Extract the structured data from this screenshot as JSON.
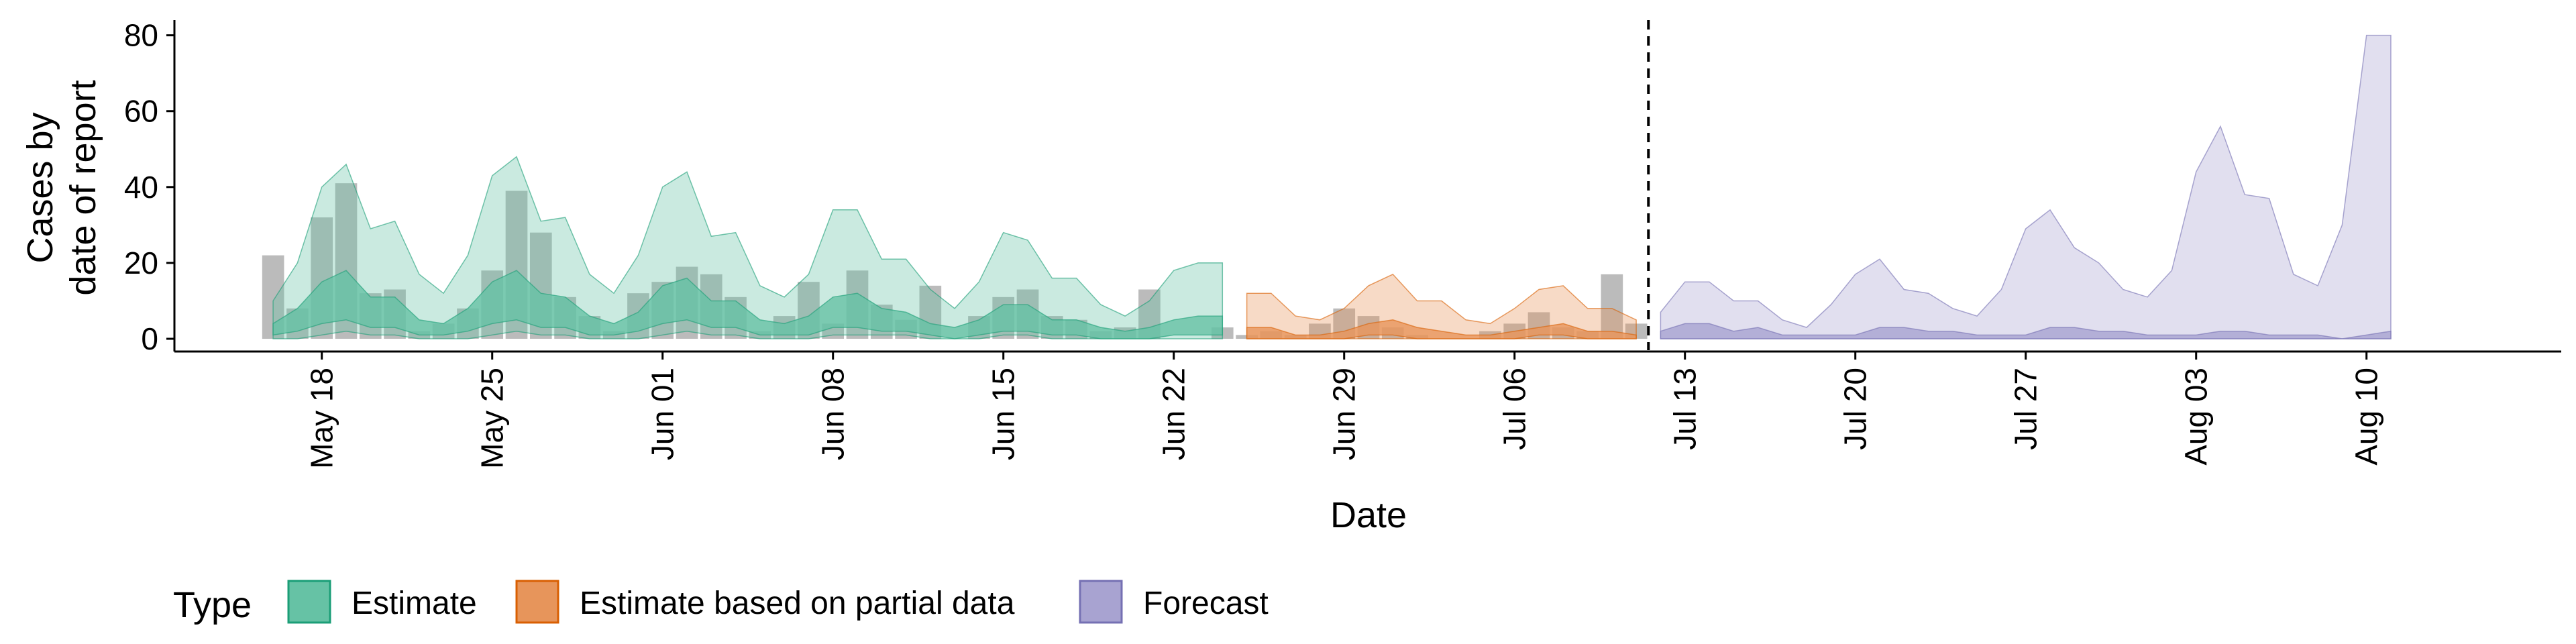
{
  "chart_data": {
    "type": "area",
    "xlabel": "Date",
    "ylabel": [
      "Cases by",
      "date of report"
    ],
    "ylim": [
      -3,
      84
    ],
    "y_ticks": [
      0,
      20,
      40,
      60,
      80
    ],
    "x_start": "2020-05-12",
    "x_end": "2020-08-18",
    "x_ticks": [
      {
        "date": "2020-05-18",
        "label": "May 18"
      },
      {
        "date": "2020-05-25",
        "label": "May 25"
      },
      {
        "date": "2020-06-01",
        "label": "Jun 01"
      },
      {
        "date": "2020-06-08",
        "label": "Jun 08"
      },
      {
        "date": "2020-06-15",
        "label": "Jun 15"
      },
      {
        "date": "2020-06-22",
        "label": "Jun 22"
      },
      {
        "date": "2020-06-29",
        "label": "Jun 29"
      },
      {
        "date": "2020-07-06",
        "label": "Jul 06"
      },
      {
        "date": "2020-07-13",
        "label": "Jul 13"
      },
      {
        "date": "2020-07-20",
        "label": "Jul 20"
      },
      {
        "date": "2020-07-27",
        "label": "Jul 27"
      },
      {
        "date": "2020-08-03",
        "label": "Aug 03"
      },
      {
        "date": "2020-08-10",
        "label": "Aug 10"
      }
    ],
    "forecast_start_line": "2020-07-12",
    "legend": {
      "title": "Type",
      "position": "bottom",
      "items": [
        {
          "label": "Estimate",
          "fill": "#66C2A5",
          "stroke": "#1B9E77"
        },
        {
          "label": "Estimate based on partial data",
          "fill": "#E7955B",
          "stroke": "#D95F02"
        },
        {
          "label": "Forecast",
          "fill": "#A8A3D1",
          "stroke": "#7570B3"
        }
      ]
    },
    "observed_bars": {
      "color": "#9E9E9E",
      "dates": [
        "2020-05-16",
        "2020-05-17",
        "2020-05-18",
        "2020-05-19",
        "2020-05-20",
        "2020-05-21",
        "2020-05-22",
        "2020-05-23",
        "2020-05-24",
        "2020-05-25",
        "2020-05-26",
        "2020-05-27",
        "2020-05-28",
        "2020-05-29",
        "2020-05-30",
        "2020-05-31",
        "2020-06-01",
        "2020-06-02",
        "2020-06-03",
        "2020-06-04",
        "2020-06-05",
        "2020-06-06",
        "2020-06-07",
        "2020-06-08",
        "2020-06-09",
        "2020-06-10",
        "2020-06-11",
        "2020-06-12",
        "2020-06-13",
        "2020-06-14",
        "2020-06-15",
        "2020-06-16",
        "2020-06-17",
        "2020-06-18",
        "2020-06-19",
        "2020-06-20",
        "2020-06-21",
        "2020-06-22",
        "2020-06-23",
        "2020-06-24",
        "2020-06-25",
        "2020-06-26",
        "2020-06-27",
        "2020-06-28",
        "2020-06-29",
        "2020-06-30",
        "2020-07-01",
        "2020-07-02",
        "2020-07-03",
        "2020-07-04",
        "2020-07-05",
        "2020-07-06",
        "2020-07-07",
        "2020-07-08",
        "2020-07-09",
        "2020-07-10",
        "2020-07-11"
      ],
      "values": [
        22,
        8,
        32,
        41,
        12,
        13,
        2,
        4,
        8,
        18,
        39,
        28,
        11,
        6,
        2,
        12,
        15,
        19,
        17,
        11,
        2,
        6,
        15,
        4,
        18,
        9,
        5,
        14,
        0,
        6,
        11,
        13,
        6,
        5,
        2,
        3,
        13,
        0,
        0,
        3,
        1,
        2,
        1,
        4,
        8,
        6,
        3,
        1,
        0,
        0,
        2,
        4,
        7,
        3,
        2,
        17,
        4
      ]
    },
    "series": [
      {
        "name": "Estimate",
        "dates": [
          "2020-05-16",
          "2020-05-17",
          "2020-05-18",
          "2020-05-19",
          "2020-05-20",
          "2020-05-21",
          "2020-05-22",
          "2020-05-23",
          "2020-05-24",
          "2020-05-25",
          "2020-05-26",
          "2020-05-27",
          "2020-05-28",
          "2020-05-29",
          "2020-05-30",
          "2020-05-31",
          "2020-06-01",
          "2020-06-02",
          "2020-06-03",
          "2020-06-04",
          "2020-06-05",
          "2020-06-06",
          "2020-06-07",
          "2020-06-08",
          "2020-06-09",
          "2020-06-10",
          "2020-06-11",
          "2020-06-12",
          "2020-06-13",
          "2020-06-14",
          "2020-06-15",
          "2020-06-16",
          "2020-06-17",
          "2020-06-18",
          "2020-06-19",
          "2020-06-20",
          "2020-06-21",
          "2020-06-22",
          "2020-06-23",
          "2020-06-24"
        ],
        "outer_upper": [
          10,
          20,
          40,
          46,
          29,
          31,
          17,
          12,
          22,
          43,
          48,
          31,
          32,
          17,
          12,
          22,
          40,
          44,
          27,
          28,
          14,
          11,
          17,
          34,
          34,
          21,
          21,
          13,
          8,
          15,
          28,
          26,
          16,
          16,
          9,
          6,
          10,
          18,
          20,
          20
        ],
        "outer_lower": [
          0,
          0,
          1,
          2,
          1,
          1,
          0,
          0,
          0,
          1,
          2,
          1,
          1,
          0,
          0,
          0,
          1,
          2,
          1,
          1,
          0,
          0,
          0,
          1,
          1,
          1,
          1,
          0,
          0,
          0,
          1,
          1,
          0,
          0,
          0,
          0,
          0,
          0,
          0,
          0
        ],
        "inner_upper": [
          4,
          8,
          15,
          18,
          11,
          11,
          5,
          4,
          8,
          15,
          18,
          12,
          11,
          6,
          4,
          7,
          14,
          16,
          10,
          10,
          5,
          4,
          6,
          11,
          12,
          8,
          7,
          4,
          3,
          5,
          9,
          9,
          5,
          5,
          3,
          2,
          3,
          5,
          6,
          6
        ],
        "inner_lower": [
          1,
          2,
          4,
          5,
          3,
          3,
          1,
          1,
          2,
          4,
          5,
          3,
          3,
          1,
          1,
          2,
          4,
          5,
          3,
          3,
          1,
          1,
          1,
          3,
          3,
          2,
          2,
          1,
          0,
          1,
          2,
          2,
          1,
          1,
          0,
          0,
          0,
          1,
          1,
          1
        ]
      },
      {
        "name": "Estimate based on partial data",
        "dates": [
          "2020-06-25",
          "2020-06-26",
          "2020-06-27",
          "2020-06-28",
          "2020-06-29",
          "2020-06-30",
          "2020-07-01",
          "2020-07-02",
          "2020-07-03",
          "2020-07-04",
          "2020-07-05",
          "2020-07-06",
          "2020-07-07",
          "2020-07-08",
          "2020-07-09",
          "2020-07-10",
          "2020-07-11"
        ],
        "outer_upper": [
          12,
          12,
          6,
          5,
          8,
          14,
          17,
          10,
          10,
          5,
          4,
          8,
          13,
          14,
          8,
          8,
          5
        ],
        "outer_lower": [
          0,
          0,
          0,
          0,
          0,
          0,
          0,
          0,
          0,
          0,
          0,
          0,
          0,
          0,
          0,
          0,
          0
        ],
        "inner_upper": [
          3,
          3,
          1,
          1,
          2,
          4,
          5,
          3,
          2,
          1,
          1,
          2,
          3,
          4,
          2,
          2,
          1
        ],
        "inner_lower": [
          0,
          0,
          0,
          0,
          0,
          1,
          1,
          0,
          0,
          0,
          0,
          0,
          1,
          1,
          0,
          0,
          0
        ]
      },
      {
        "name": "Forecast",
        "dates": [
          "2020-07-12",
          "2020-07-13",
          "2020-07-14",
          "2020-07-15",
          "2020-07-16",
          "2020-07-17",
          "2020-07-18",
          "2020-07-19",
          "2020-07-20",
          "2020-07-21",
          "2020-07-22",
          "2020-07-23",
          "2020-07-24",
          "2020-07-25",
          "2020-07-26",
          "2020-07-27",
          "2020-07-28",
          "2020-07-29",
          "2020-07-30",
          "2020-07-31",
          "2020-08-01",
          "2020-08-02",
          "2020-08-03",
          "2020-08-04",
          "2020-08-05",
          "2020-08-06",
          "2020-08-07",
          "2020-08-08",
          "2020-08-09",
          "2020-08-10",
          "2020-08-11"
        ],
        "outer_upper": [
          7,
          15,
          15,
          10,
          10,
          5,
          3,
          9,
          17,
          21,
          13,
          12,
          8,
          6,
          13,
          29,
          34,
          24,
          20,
          13,
          11,
          18,
          44,
          56,
          38,
          37,
          17,
          14,
          30,
          80,
          80
        ],
        "outer_lower": [
          0,
          0,
          0,
          0,
          0,
          0,
          0,
          0,
          0,
          0,
          0,
          0,
          0,
          0,
          0,
          0,
          0,
          0,
          0,
          0,
          0,
          0,
          0,
          0,
          0,
          0,
          0,
          0,
          0,
          0,
          0
        ],
        "inner_upper": [
          2,
          4,
          4,
          2,
          3,
          1,
          1,
          1,
          1,
          3,
          3,
          2,
          2,
          1,
          1,
          1,
          3,
          3,
          2,
          2,
          1,
          1,
          1,
          2,
          2,
          1,
          1,
          1,
          0,
          1,
          2
        ],
        "inner_lower": [
          0,
          0,
          0,
          0,
          0,
          0,
          0,
          0,
          0,
          0,
          0,
          0,
          0,
          0,
          0,
          0,
          0,
          0,
          0,
          0,
          0,
          0,
          0,
          0,
          0,
          0,
          0,
          0,
          0,
          0,
          0
        ]
      }
    ]
  }
}
